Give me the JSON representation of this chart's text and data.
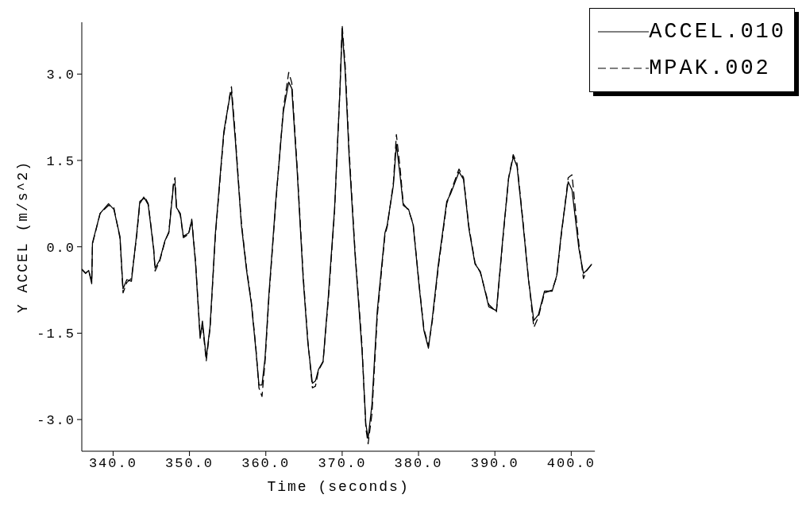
{
  "chart_data": {
    "type": "line",
    "xlabel": "Time (seconds)",
    "ylabel": "Y ACCEL (m/s^2)",
    "x": [
      335.9,
      336.4,
      336.8,
      337.2,
      337.3,
      338.3,
      339.4,
      340.1,
      340.9,
      341.3,
      341.8,
      342.4,
      343.1,
      343.5,
      344.1,
      344.6,
      345.3,
      345.5,
      346.1,
      346.8,
      347.3,
      347.9,
      348.1,
      348.3,
      348.8,
      349.2,
      349.9,
      350.3,
      350.8,
      351.4,
      351.7,
      352.2,
      352.7,
      353.4,
      354.5,
      355.3,
      355.5,
      356.0,
      356.8,
      357.5,
      358.1,
      358.7,
      359.1,
      359.5,
      359.9,
      360.4,
      361.3,
      362.3,
      363.0,
      363.4,
      364.1,
      364.9,
      365.5,
      366.1,
      366.5,
      366.9,
      367.5,
      368.2,
      369.0,
      369.7,
      370.0,
      370.4,
      370.9,
      371.7,
      372.6,
      373.1,
      373.4,
      373.9,
      374.6,
      375.6,
      375.9,
      376.7,
      377.1,
      377.6,
      378.0,
      378.7,
      379.3,
      380.1,
      380.7,
      381.3,
      381.8,
      382.6,
      383.7,
      384.2,
      385.3,
      385.9,
      386.6,
      387.4,
      388.1,
      389.2,
      390.2,
      391.1,
      391.8,
      392.4,
      392.9,
      393.7,
      394.4,
      395.1,
      395.7,
      396.5,
      397.5,
      398.1,
      398.7,
      399.6,
      400.1,
      401.0,
      401.6,
      402.0,
      402.7
    ],
    "series": [
      {
        "name": "ACCEL.010",
        "color": "#000000",
        "line_style": "solid",
        "values": [
          -0.39,
          -0.46,
          -0.41,
          -0.64,
          0.07,
          0.58,
          0.75,
          0.65,
          0.18,
          -0.73,
          -0.57,
          -0.6,
          0.24,
          0.79,
          0.85,
          0.73,
          -0.03,
          -0.37,
          -0.23,
          0.11,
          0.24,
          1.06,
          1.1,
          0.68,
          0.58,
          0.18,
          0.24,
          0.46,
          -0.3,
          -1.59,
          -1.29,
          -1.93,
          -1.38,
          0.24,
          2.0,
          2.62,
          2.69,
          1.87,
          0.38,
          -0.43,
          -0.98,
          -1.79,
          -2.4,
          -2.4,
          -1.93,
          -0.84,
          0.79,
          2.35,
          2.86,
          2.75,
          1.33,
          -0.57,
          -1.66,
          -2.37,
          -2.33,
          -2.13,
          -1.99,
          -0.84,
          0.65,
          2.69,
          3.77,
          3.03,
          1.6,
          -0.16,
          -1.79,
          -3.08,
          -3.32,
          -2.74,
          -1.11,
          0.24,
          0.38,
          1.06,
          1.78,
          1.22,
          0.72,
          0.65,
          0.38,
          -0.71,
          -1.45,
          -1.76,
          -1.25,
          -0.3,
          0.79,
          0.92,
          1.3,
          1.17,
          0.31,
          -0.3,
          -0.43,
          -1.04,
          -1.11,
          0.24,
          1.19,
          1.56,
          1.4,
          0.38,
          -0.57,
          -1.28,
          -1.18,
          -0.77,
          -0.77,
          -0.5,
          0.24,
          1.13,
          0.99,
          -0.03,
          -0.46,
          -0.41,
          -0.3
        ]
      },
      {
        "name": "MPAK.002",
        "color": "#000000",
        "line_style": "dashed",
        "values": [
          -0.39,
          -0.46,
          -0.41,
          -0.6,
          0.05,
          0.58,
          0.72,
          0.68,
          0.15,
          -0.8,
          -0.62,
          -0.55,
          0.2,
          0.75,
          0.88,
          0.75,
          0.0,
          -0.42,
          -0.25,
          0.1,
          0.26,
          1.1,
          1.2,
          0.7,
          0.55,
          0.16,
          0.22,
          0.48,
          -0.25,
          -1.55,
          -1.35,
          -1.98,
          -1.42,
          0.2,
          1.95,
          2.65,
          2.78,
          1.95,
          0.42,
          -0.4,
          -0.95,
          -1.75,
          -2.45,
          -2.6,
          -2.0,
          -0.9,
          0.75,
          2.4,
          3.03,
          2.85,
          1.4,
          -0.5,
          -1.62,
          -2.45,
          -2.42,
          -2.15,
          -2.0,
          -0.9,
          0.6,
          2.7,
          3.85,
          3.15,
          1.7,
          -0.1,
          -1.72,
          -3.15,
          -3.42,
          -2.9,
          -1.2,
          0.2,
          0.35,
          1.1,
          1.95,
          1.35,
          0.75,
          0.63,
          0.4,
          -0.68,
          -1.42,
          -1.72,
          -1.3,
          -0.35,
          0.75,
          0.95,
          1.35,
          1.2,
          0.35,
          -0.28,
          -0.45,
          -1.0,
          -1.13,
          0.2,
          1.2,
          1.6,
          1.45,
          0.42,
          -0.55,
          -1.4,
          -1.22,
          -0.8,
          -0.75,
          -0.52,
          0.2,
          1.2,
          1.25,
          0.05,
          -0.55,
          -0.42,
          -0.3
        ]
      }
    ],
    "xlim": [
      335.9,
      403.1
    ],
    "ylim": [
      -3.55,
      3.9
    ],
    "xticks": [
      {
        "value": 340,
        "label": "340.0"
      },
      {
        "value": 350,
        "label": "350.0"
      },
      {
        "value": 360,
        "label": "360.0"
      },
      {
        "value": 370,
        "label": "370.0"
      },
      {
        "value": 380,
        "label": "380.0"
      },
      {
        "value": 390,
        "label": "390.0"
      },
      {
        "value": 400,
        "label": "400.0"
      }
    ],
    "yticks": [
      {
        "value": -3,
        "label": "-3.0"
      },
      {
        "value": -1.5,
        "label": "-1.5"
      },
      {
        "value": 0,
        "label": "0.0"
      },
      {
        "value": 1.5,
        "label": "1.5"
      },
      {
        "value": 3,
        "label": "3.0"
      }
    ],
    "grid": false,
    "legend": "top right",
    "marker": "none"
  }
}
